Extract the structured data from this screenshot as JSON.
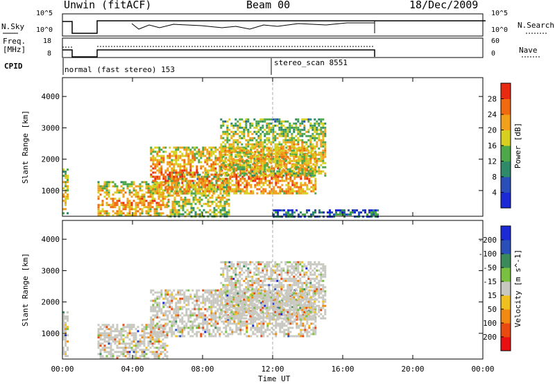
{
  "header": {
    "station": "Unwin (fitACF)",
    "beam": "Beam 00",
    "date": "18/Dec/2009"
  },
  "strip_labels": {
    "nsky": "N.Sky",
    "nsky_ticks": [
      "10^5",
      "10^0"
    ],
    "nsearch": "N.Search",
    "nsearch_ticks": [
      "10^5",
      "10^0"
    ],
    "freq": "Freq.",
    "freq_unit": "[MHz]",
    "freq_ticks": [
      "18",
      "8"
    ],
    "nave": "Nave",
    "nave_ticks": [
      "60",
      "0"
    ],
    "cpid": "CPID",
    "cpid_first": "normal (fast stereo) 153",
    "cpid_second": "stereo_scan 8551"
  },
  "chart_data": [
    {
      "type": "heatmap",
      "name": "power",
      "ylabel": "Slant Range [km]",
      "xlabel": "Time UT",
      "x_ticks": [
        "00:00",
        "04:00",
        "08:00",
        "12:00",
        "16:00",
        "20:00",
        "00:00"
      ],
      "y_ticks": [
        1000,
        2000,
        3000,
        4000
      ],
      "ylim": [
        180,
        4600
      ],
      "colorbar_label": "Power [dB]",
      "colorbar_ticks": [
        4,
        8,
        12,
        16,
        20,
        24,
        28
      ],
      "colorbar_colors": [
        "#1a2bd6",
        "#2a4fb8",
        "#2f8a6a",
        "#4da84a",
        "#d8d020",
        "#f0a01a",
        "#f06a10",
        "#e82a10"
      ],
      "regions": [
        {
          "t0": 0.0,
          "t1": 0.25,
          "r0": 300,
          "r1": 1700,
          "level": 0.5
        },
        {
          "t0": 2.0,
          "t1": 6.0,
          "r0": 200,
          "r1": 1300,
          "level": 0.55
        },
        {
          "t0": 6.0,
          "t1": 9.5,
          "r0": 200,
          "r1": 1600,
          "level": 0.4
        },
        {
          "t0": 5.0,
          "t1": 14.5,
          "r0": 900,
          "r1": 2400,
          "level": 0.6
        },
        {
          "t0": 9.0,
          "t1": 15.0,
          "r0": 1500,
          "r1": 3300,
          "level": 0.45
        },
        {
          "t0": 12.0,
          "t1": 18.0,
          "r0": 200,
          "r1": 400,
          "level": 0.15
        }
      ],
      "vline": "12:00"
    },
    {
      "type": "heatmap",
      "name": "velocity",
      "ylabel": "Slant Range [km]",
      "xlabel": "Time UT",
      "x_ticks": [
        "00:00",
        "04:00",
        "08:00",
        "12:00",
        "16:00",
        "20:00",
        "00:00"
      ],
      "y_ticks": [
        1000,
        2000,
        3000,
        4000
      ],
      "ylim": [
        180,
        4600
      ],
      "colorbar_label": "Velocity [m s^-1]",
      "colorbar_ticks": [
        200,
        100,
        50,
        15,
        -15,
        -50,
        -100,
        -200
      ],
      "colorbar_colors": [
        "#1a2bd6",
        "#2a4fb8",
        "#3a8a5a",
        "#7ac040",
        "#c8c8c0",
        "#f0c020",
        "#f08a10",
        "#e84a10",
        "#e81010"
      ],
      "regions": [
        {
          "t0": 0.0,
          "t1": 0.25,
          "r0": 300,
          "r1": 1700,
          "level": 0.5
        },
        {
          "t0": 2.0,
          "t1": 6.0,
          "r0": 200,
          "r1": 1300,
          "level": 0.55
        },
        {
          "t0": 5.0,
          "t1": 14.5,
          "r0": 900,
          "r1": 2400,
          "level": 0.6
        },
        {
          "t0": 9.0,
          "t1": 15.0,
          "r0": 1500,
          "r1": 3300,
          "level": 0.45
        }
      ],
      "vline": "12:00"
    }
  ],
  "xlabel": "Time UT"
}
